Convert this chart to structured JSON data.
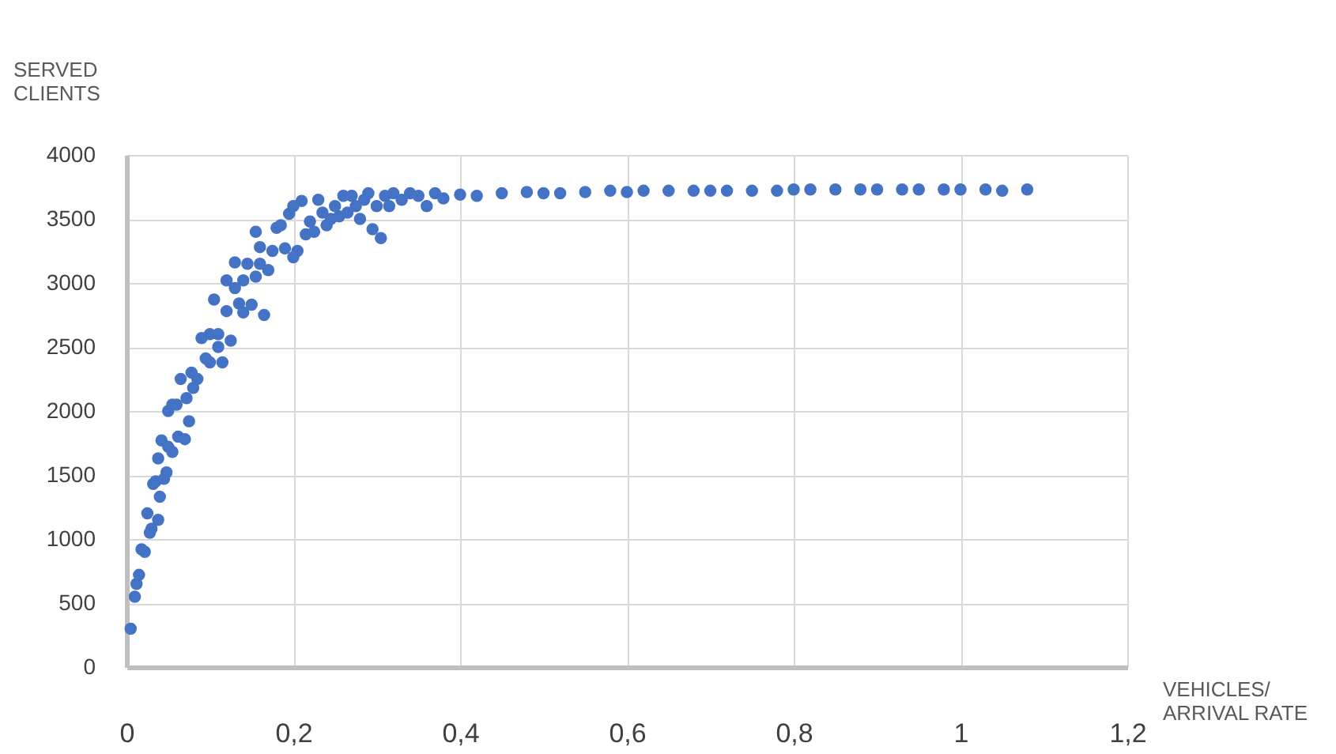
{
  "chart_data": {
    "type": "scatter",
    "xlabel": "VEHICLES/ ARRIVAL RATE",
    "ylabel": "SERVED CLIENTS",
    "xlim": [
      0,
      1.2
    ],
    "ylim": [
      0,
      4000
    ],
    "xticks": [
      0,
      {
        "value": 0.2,
        "label": "0,2"
      },
      {
        "value": 0.4,
        "label": "0,4"
      },
      {
        "value": 0.6,
        "label": "0,6"
      },
      {
        "value": 0.8,
        "label": "0,8"
      },
      1,
      {
        "value": 1.2,
        "label": "1,2"
      }
    ],
    "yticks": [
      0,
      500,
      1000,
      1500,
      2000,
      2500,
      3000,
      3500,
      4000
    ],
    "grid": true,
    "legend": false,
    "marker": "circle",
    "series": [
      {
        "color": "#4472c4",
        "x": [
          0.005,
          0.01,
          0.012,
          0.015,
          0.018,
          0.022,
          0.025,
          0.028,
          0.03,
          0.032,
          0.035,
          0.038,
          0.038,
          0.04,
          0.042,
          0.045,
          0.048,
          0.05,
          0.05,
          0.055,
          0.055,
          0.06,
          0.062,
          0.065,
          0.07,
          0.072,
          0.075,
          0.078,
          0.08,
          0.085,
          0.09,
          0.095,
          0.1,
          0.1,
          0.105,
          0.11,
          0.11,
          0.115,
          0.12,
          0.12,
          0.125,
          0.13,
          0.13,
          0.135,
          0.14,
          0.14,
          0.145,
          0.15,
          0.155,
          0.155,
          0.16,
          0.16,
          0.165,
          0.17,
          0.175,
          0.18,
          0.185,
          0.19,
          0.195,
          0.2,
          0.2,
          0.205,
          0.21,
          0.215,
          0.22,
          0.225,
          0.23,
          0.235,
          0.24,
          0.245,
          0.25,
          0.255,
          0.26,
          0.265,
          0.27,
          0.275,
          0.28,
          0.285,
          0.29,
          0.295,
          0.3,
          0.305,
          0.31,
          0.315,
          0.32,
          0.33,
          0.34,
          0.35,
          0.36,
          0.37,
          0.38,
          0.4,
          0.42,
          0.45,
          0.48,
          0.5,
          0.52,
          0.55,
          0.58,
          0.6,
          0.62,
          0.65,
          0.68,
          0.7,
          0.72,
          0.75,
          0.78,
          0.8,
          0.82,
          0.85,
          0.88,
          0.9,
          0.93,
          0.95,
          0.98,
          1.0,
          1.03,
          1.05,
          1.08
        ],
        "values": [
          300,
          550,
          650,
          720,
          920,
          900,
          1200,
          1050,
          1080,
          1430,
          1450,
          1150,
          1630,
          1330,
          1770,
          1470,
          1520,
          1720,
          2000,
          2050,
          1680,
          2050,
          1800,
          2250,
          1780,
          2100,
          1920,
          2300,
          2180,
          2250,
          2570,
          2410,
          2600,
          2380,
          2870,
          2500,
          2600,
          2380,
          3020,
          2780,
          2550,
          2960,
          3160,
          2840,
          3020,
          2770,
          3150,
          2830,
          3400,
          3050,
          3280,
          3150,
          2750,
          3100,
          3250,
          3430,
          3450,
          3270,
          3540,
          3200,
          3600,
          3250,
          3640,
          3380,
          3480,
          3400,
          3650,
          3550,
          3450,
          3500,
          3600,
          3520,
          3680,
          3550,
          3680,
          3600,
          3500,
          3650,
          3700,
          3420,
          3600,
          3350,
          3680,
          3600,
          3700,
          3650,
          3700,
          3680,
          3600,
          3700,
          3660,
          3690,
          3680,
          3700,
          3710,
          3700,
          3700,
          3710,
          3720,
          3710,
          3720,
          3720,
          3720,
          3720,
          3720,
          3720,
          3720,
          3730,
          3730,
          3730,
          3730,
          3730,
          3730,
          3730,
          3730,
          3730,
          3730,
          3720,
          3730
        ]
      }
    ]
  }
}
